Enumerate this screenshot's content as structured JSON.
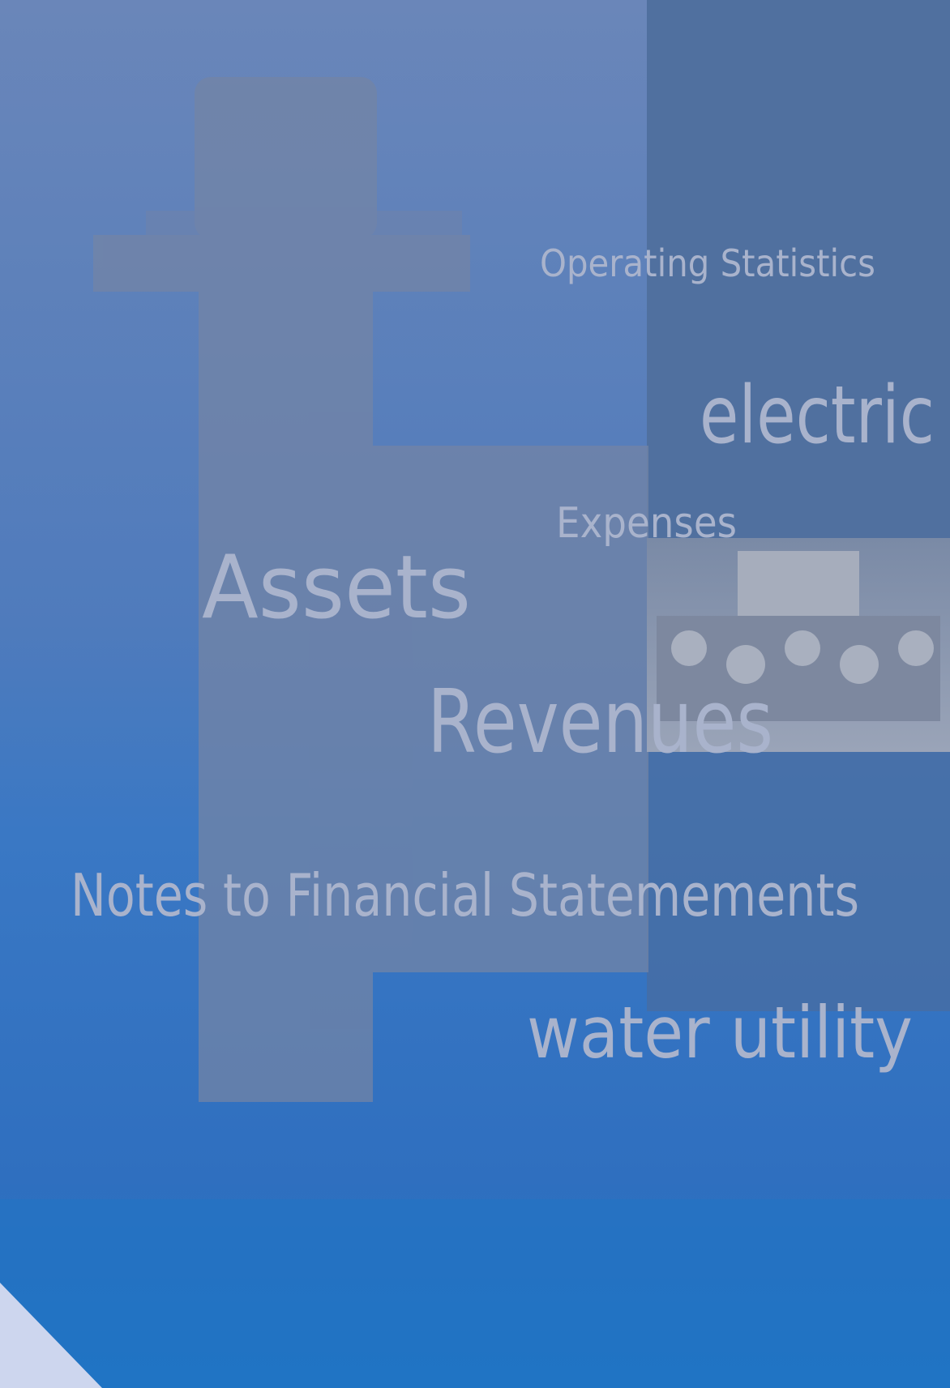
{
  "cover": {
    "headings": [
      "Operating Statistics",
      "electric",
      "Expenses",
      "Assets",
      "Revenues",
      "Notes to Financial Statemements",
      "water utility"
    ]
  }
}
